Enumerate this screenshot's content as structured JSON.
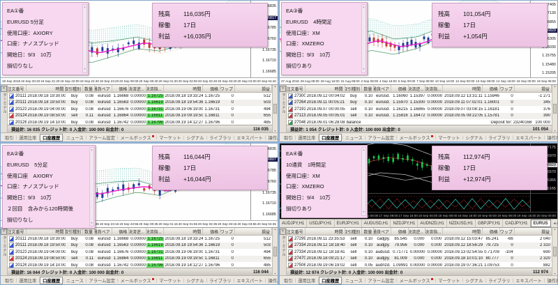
{
  "icons": {
    "close": "×",
    "scroll_up": "▲",
    "scroll_down": "▼",
    "tab_scroll_left": "◄",
    "tab_scroll_right": "►"
  },
  "colors": {
    "pink_panel": "#f8d8f0",
    "green_highlight": "#5fe45f",
    "buy_icon": "#3355cc",
    "sell_icon": "#cc3333",
    "ma_line_light": "#f018c8",
    "candle_up_light": "#1f3b9b",
    "candle_down_light": "#c23a32",
    "candle_dark_theme": "#17c94f"
  },
  "stats_labels": {
    "balance": "残高",
    "days": "稼働",
    "profit": "利益"
  },
  "terminal": {
    "side_label": "ターミナル",
    "columns": [
      "注文番号",
      "時間",
      "取引種別",
      "数量",
      "通貨ペア",
      "価格",
      "決済逆...",
      "決済指...",
      "時間",
      "価格",
      "スワップ",
      "損益"
    ],
    "tabs": [
      "取引",
      "運用比率",
      "口座履歴",
      "ニュース",
      "アラーム設定",
      "メールボックス",
      "マーケット",
      "シグナル",
      "ライブラリ",
      "エキスパート",
      "操作履歴"
    ],
    "active_tab": "口座履歴"
  },
  "quadrants": [
    {
      "position": "top-left",
      "info_lines": [
        "EA①番",
        "EURUSD 5分足",
        "使用口座：AXIORY",
        "口座：ナノスプレッド",
        "開始日：9/3　10万",
        "損切りなし"
      ],
      "stats": {
        "balance": "116,035円",
        "days": "17日",
        "profit": "+16,035円"
      },
      "price_axis": [
        "1.16835",
        "1.16810",
        "1.16785",
        "1.16760",
        "1.16735",
        "1.16710",
        "1.16685"
      ],
      "current_price": "1.16817",
      "time_axis": [
        "19 Sep 2018",
        "19 Sep 20:40",
        "19 Sep 21:20",
        "19 Sep 22:00",
        "19 Sep 22:40",
        "19 Sep 23:20",
        "20 Sep 00:00",
        "20 Sep 00:40",
        "20 Sep 01:20",
        "20 Sep 02:00",
        "20 Sep 02:40",
        "20 Sep 03:20",
        "20 Sep 04:00",
        "20 Sep 04:40"
      ],
      "symbol_tabs": null,
      "table_rows": [
        [
          "20111...",
          "2018.09.18 19:30:00",
          "buy",
          "0.08",
          "eurusd",
          "1.16668",
          "0.00000",
          "1.16725",
          "2018.09.18 19:33:24",
          "1.16725",
          "0",
          "512"
        ],
        [
          "20111...",
          "2018.09.18 19:50:00",
          "buy",
          "0.08",
          "eurusd",
          "1.16563",
          "0.00000",
          "1.16619",
          "2018.09.18 19:54:36",
          "1.16619",
          "0",
          "503"
        ],
        [
          "20123...",
          "2018.09.19 04:00:00",
          "buy",
          "0.08",
          "eurusd",
          "1.16676",
          "0.00000",
          "1.16731",
          "2018.09.19 06:19:00",
          "1.16731",
          "0",
          "494"
        ],
        [
          "20124...",
          "2018.09.19 08:50:00",
          "sell",
          "0.11",
          "eurusd",
          "1.16864",
          "0.00000",
          "1.16811",
          "2018.09.19 09:19:50",
          "1.16811",
          "0",
          "655"
        ],
        [
          "20126...",
          "2018.09.19 14:10:00",
          "buy",
          "0.08",
          "eurusd",
          "1.16742",
          "0.00000",
          "1.16796",
          "2018.09.19 14:12:27",
          "1.16796",
          "0",
          "485"
        ]
      ],
      "highlight_col": 7,
      "footer_left": "損益計: 16 035  クレジット計: 0  入金計: 100 000  出金計: 0",
      "footer_total": "116 035"
    },
    {
      "position": "top-right",
      "info_lines": [
        "EA③番",
        "EURUSD　4時間足",
        "使用口座：XM",
        "口座：XMZERO",
        "開始日：9/3　10万",
        "損切りあり"
      ],
      "stats": {
        "balance": "101,054円",
        "days": "17日",
        "profit": "+1,054円"
      },
      "price_axis": [
        "1.17405",
        "1.17130",
        "1.16855",
        "1.16580",
        "1.16305",
        "1.16030",
        "1.15755",
        "1.15480",
        "1.15205"
      ],
      "current_price": "1.16829",
      "time_axis": [
        "27 Aug 2018",
        "28 Aug 08:00",
        "29 Aug 16:00",
        "31 Aug 08:00",
        "3 Sep 08:00",
        "4 Sep 16:00",
        "6 Sep 00:00",
        "7 Sep 08:00",
        "10 Sep 16:00",
        "12 Sep 00:00",
        "13 Sep 08:00",
        "14 Sep 16:00",
        "18 Sep 00:00",
        "19 Sep 08:00"
      ],
      "symbol_tabs": null,
      "table_rows": [
        [
          "27300...",
          "2018.09.12 00:04:02",
          "buy",
          "0.10",
          "eurusd.",
          "1.16060",
          "1.15397",
          "0.00000",
          "2018.09.12 13:31:11",
          "1.15946",
          "0",
          "-1 271"
        ],
        [
          "27264...",
          "2018.09.11 00:05:21",
          "buy",
          "0.10",
          "eurusd.",
          "1.15970",
          "1.15300",
          "0.00000",
          "2018.09.11 07:02:01",
          "1.16001",
          "0",
          "345"
        ],
        [
          "27191...",
          "2018.09.07 00:00:05",
          "sell",
          "0.10",
          "eurusd.",
          "1.16215",
          "1.16865",
          "0.00000",
          "2018.09.07 03:08:15",
          "1.16181",
          "0",
          "376"
        ],
        [
          "27113...",
          "2018.09.05 00:05:01",
          "sell",
          "0.10",
          "eurusd.",
          "1.15816",
          "1.16472",
          "0.00000",
          "2018.09.05 09:22:05",
          "1.15781",
          "0",
          "390"
        ],
        [
          "27046...",
          "2018.09.01 06:28:08",
          "balance",
          "",
          "",
          "",
          "",
          "",
          "Deposit for: 23240168",
          "",
          "",
          "100 000"
        ]
      ],
      "highlight_col": null,
      "footer_left": "損益計: 1 054  クレジット計: 0  入金計: 100 000  出金計: 0",
      "footer_total": "101 054"
    },
    {
      "position": "bottom-left",
      "info_lines": [
        "EA②番",
        "EURUSD　5分足",
        "使用口座　AXIORY",
        "口座：ナノスプレッド",
        "開始日：9/3　10万",
        "２回目　含みから120時間後",
        "損切りなし"
      ],
      "stats": {
        "balance": "116,044円",
        "days": "17日",
        "profit": "+16,044円"
      },
      "price_axis": [
        "1.16835",
        "1.16810",
        "1.16785",
        "1.16760",
        "1.16735",
        "1.16710",
        "1.16685"
      ],
      "current_price": "1.16807",
      "time_axis": [
        "19 Sep 2018",
        "19 Sep 20:35",
        "19 Sep 21:15",
        "19 Sep 21:55",
        "19 Sep 22:35",
        "19 Sep 23:15",
        "19 Sep 23:55",
        "20 Sep 00:35",
        "20 Sep 01:15",
        "20 Sep 01:55",
        "20 Sep 02:35",
        "20 Sep 03:15",
        "20 Sep 03:55",
        "20 Sep 04:35"
      ],
      "symbol_tabs": null,
      "table_rows": [
        [
          "20111...",
          "2018.09.18 19:30:00",
          "buy",
          "0.08",
          "eurusd",
          "1.16668",
          "0.00000",
          "1.16725",
          "2018.09.18 19:33:24",
          "1.16725",
          "0",
          "512"
        ],
        [
          "20111...",
          "2018.09.18 19:50:00",
          "buy",
          "0.08",
          "eurusd",
          "1.16563",
          "0.00000",
          "1.16619",
          "2018.09.18 19:54:36",
          "1.16619",
          "0",
          "503"
        ],
        [
          "20123...",
          "2018.09.19 04:00:00",
          "buy",
          "0.08",
          "eurusd",
          "1.16676",
          "0.00000",
          "1.16731",
          "2018.09.19 06:19:00",
          "1.16731",
          "0",
          "494"
        ],
        [
          "20124...",
          "2018.09.19 08:50:00",
          "sell",
          "0.11",
          "eurusd",
          "1.16864",
          "0.00000",
          "1.16811",
          "2018.09.19 09:19:50",
          "1.16811",
          "0",
          "655"
        ],
        [
          "20126...",
          "2018.09.19 14:10:00",
          "buy",
          "0.08",
          "eurusd",
          "1.16742",
          "0.00000",
          "1.16796",
          "2018.09.19 14:12:27",
          "1.16796",
          "0",
          "485"
        ]
      ],
      "highlight_col": 7,
      "footer_left": "損益計: 16 044  クレジット計: 0  入金計: 100 000  出金計: 0",
      "footer_total": "116 044"
    },
    {
      "position": "bottom-right",
      "info_lines": [
        "EA④番",
        "10通貨　1時間足",
        "使用口座：XM",
        "口座：XMZERO",
        "開始日：9/4　10万",
        "損切りあり"
      ],
      "stats": {
        "balance": "112,974円",
        "days": "17日",
        "profit": "+12,974円"
      },
      "price_axis": [
        "1.17175",
        "1.16970",
        "1.16770",
        "1.16570",
        "1.16365",
        "1.16165"
      ],
      "current_price": "1.16829",
      "time_axis": [
        "13 Sep 2018",
        "14 Sep 00:00",
        "14 Sep 08:00",
        "14 Sep 16:00",
        "17 Sep 00:00",
        "17 Sep 08:00",
        "17 Sep 16:00",
        "18 Sep 00:00",
        "18 Sep 08:00",
        "18 Sep 16:00",
        "19 Sep 00:00",
        "19 Sep 08:00",
        "19 Sep 16:00",
        "20 Sep 00:00"
      ],
      "symbol_tabs": {
        "items": [
          "AUDJPY,H1",
          "USDJPY,H1",
          "EURJPY,H1",
          "AUDUSD,H1",
          "NZDJPY,H1",
          "AUDNZD,H1",
          "NZDUSD,H1",
          "GBPJPY,H1",
          "CADJPY,H1",
          "EURUS"
        ],
        "active_index": 9
      },
      "table_rows": [
        [
          "27299...",
          "2018.09.11 23:35:53",
          "sell",
          "0.10",
          "cadjpy.",
          "85.545",
          "0.000",
          "0.000",
          "2018.09.12 15:03:47",
          "85.241",
          "-66",
          "2 040"
        ],
        [
          "27334...",
          "2018.09.12 18:18:40",
          "sell",
          "0.10",
          "audjpy.",
          "79.956",
          "0.000",
          "0.000",
          "2018.09.12 18:56:29",
          "79.725",
          "0",
          "2 310"
        ],
        [
          "27334...",
          "2018.09.12 18:18:41",
          "sell",
          "0.10",
          "audusd.",
          "0.71771",
          "0.00000",
          "0.00000",
          "2018.09.13 02:54:55",
          "0.71709",
          "-104",
          "690"
        ],
        [
          "27470...",
          "2018.09.18 09:21:17",
          "sell",
          "0.10",
          "audjpy.",
          "81.009",
          "0.000",
          "0.000",
          "2018.09.18 10:01:10",
          "80.777",
          "0",
          "2 320"
        ],
        [
          "27506...",
          "2018.09.19 06:19:02",
          "sell",
          "0.05",
          "audnzd.",
          "1.09991",
          "0.00000",
          "0.00000",
          "2018.09.19 07:36:21",
          "1.09753",
          "0",
          "882"
        ]
      ],
      "highlight_col": null,
      "footer_left": "損益計: 12 974  クレジット計: 0  入金計: 100 000  出金計: 0",
      "footer_total": "112 974"
    }
  ]
}
